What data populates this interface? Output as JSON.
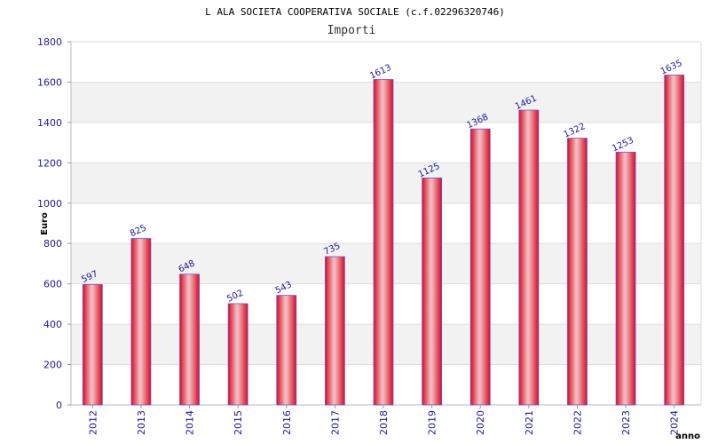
{
  "chart_data": {
    "type": "bar",
    "title": "L ALA SOCIETA COOPERATIVA SOCIALE (c.f.02296320746)",
    "subtitle": "Importi",
    "xlabel": "anno",
    "ylabel": "Euro",
    "ylim": [
      0,
      1800
    ],
    "yticks": [
      0,
      200,
      400,
      600,
      800,
      1000,
      1200,
      1400,
      1600,
      1800
    ],
    "grid": true,
    "categories": [
      "2012",
      "2013",
      "2014",
      "2015",
      "2016",
      "2017",
      "2018",
      "2019",
      "2020",
      "2021",
      "2022",
      "2023",
      "2024"
    ],
    "series": [
      {
        "values": [
          597,
          825,
          648,
          502,
          543,
          735,
          1613,
          1125,
          1368,
          1461,
          1322,
          1253,
          1635
        ]
      }
    ],
    "colors": {
      "bar": "#e8102a",
      "bar_highlight": "#f2b6bc",
      "bar_edge": "#7a4fd0",
      "label": "#1a1a9c",
      "band": "#f2f2f2",
      "grid": "#dddddd"
    }
  }
}
